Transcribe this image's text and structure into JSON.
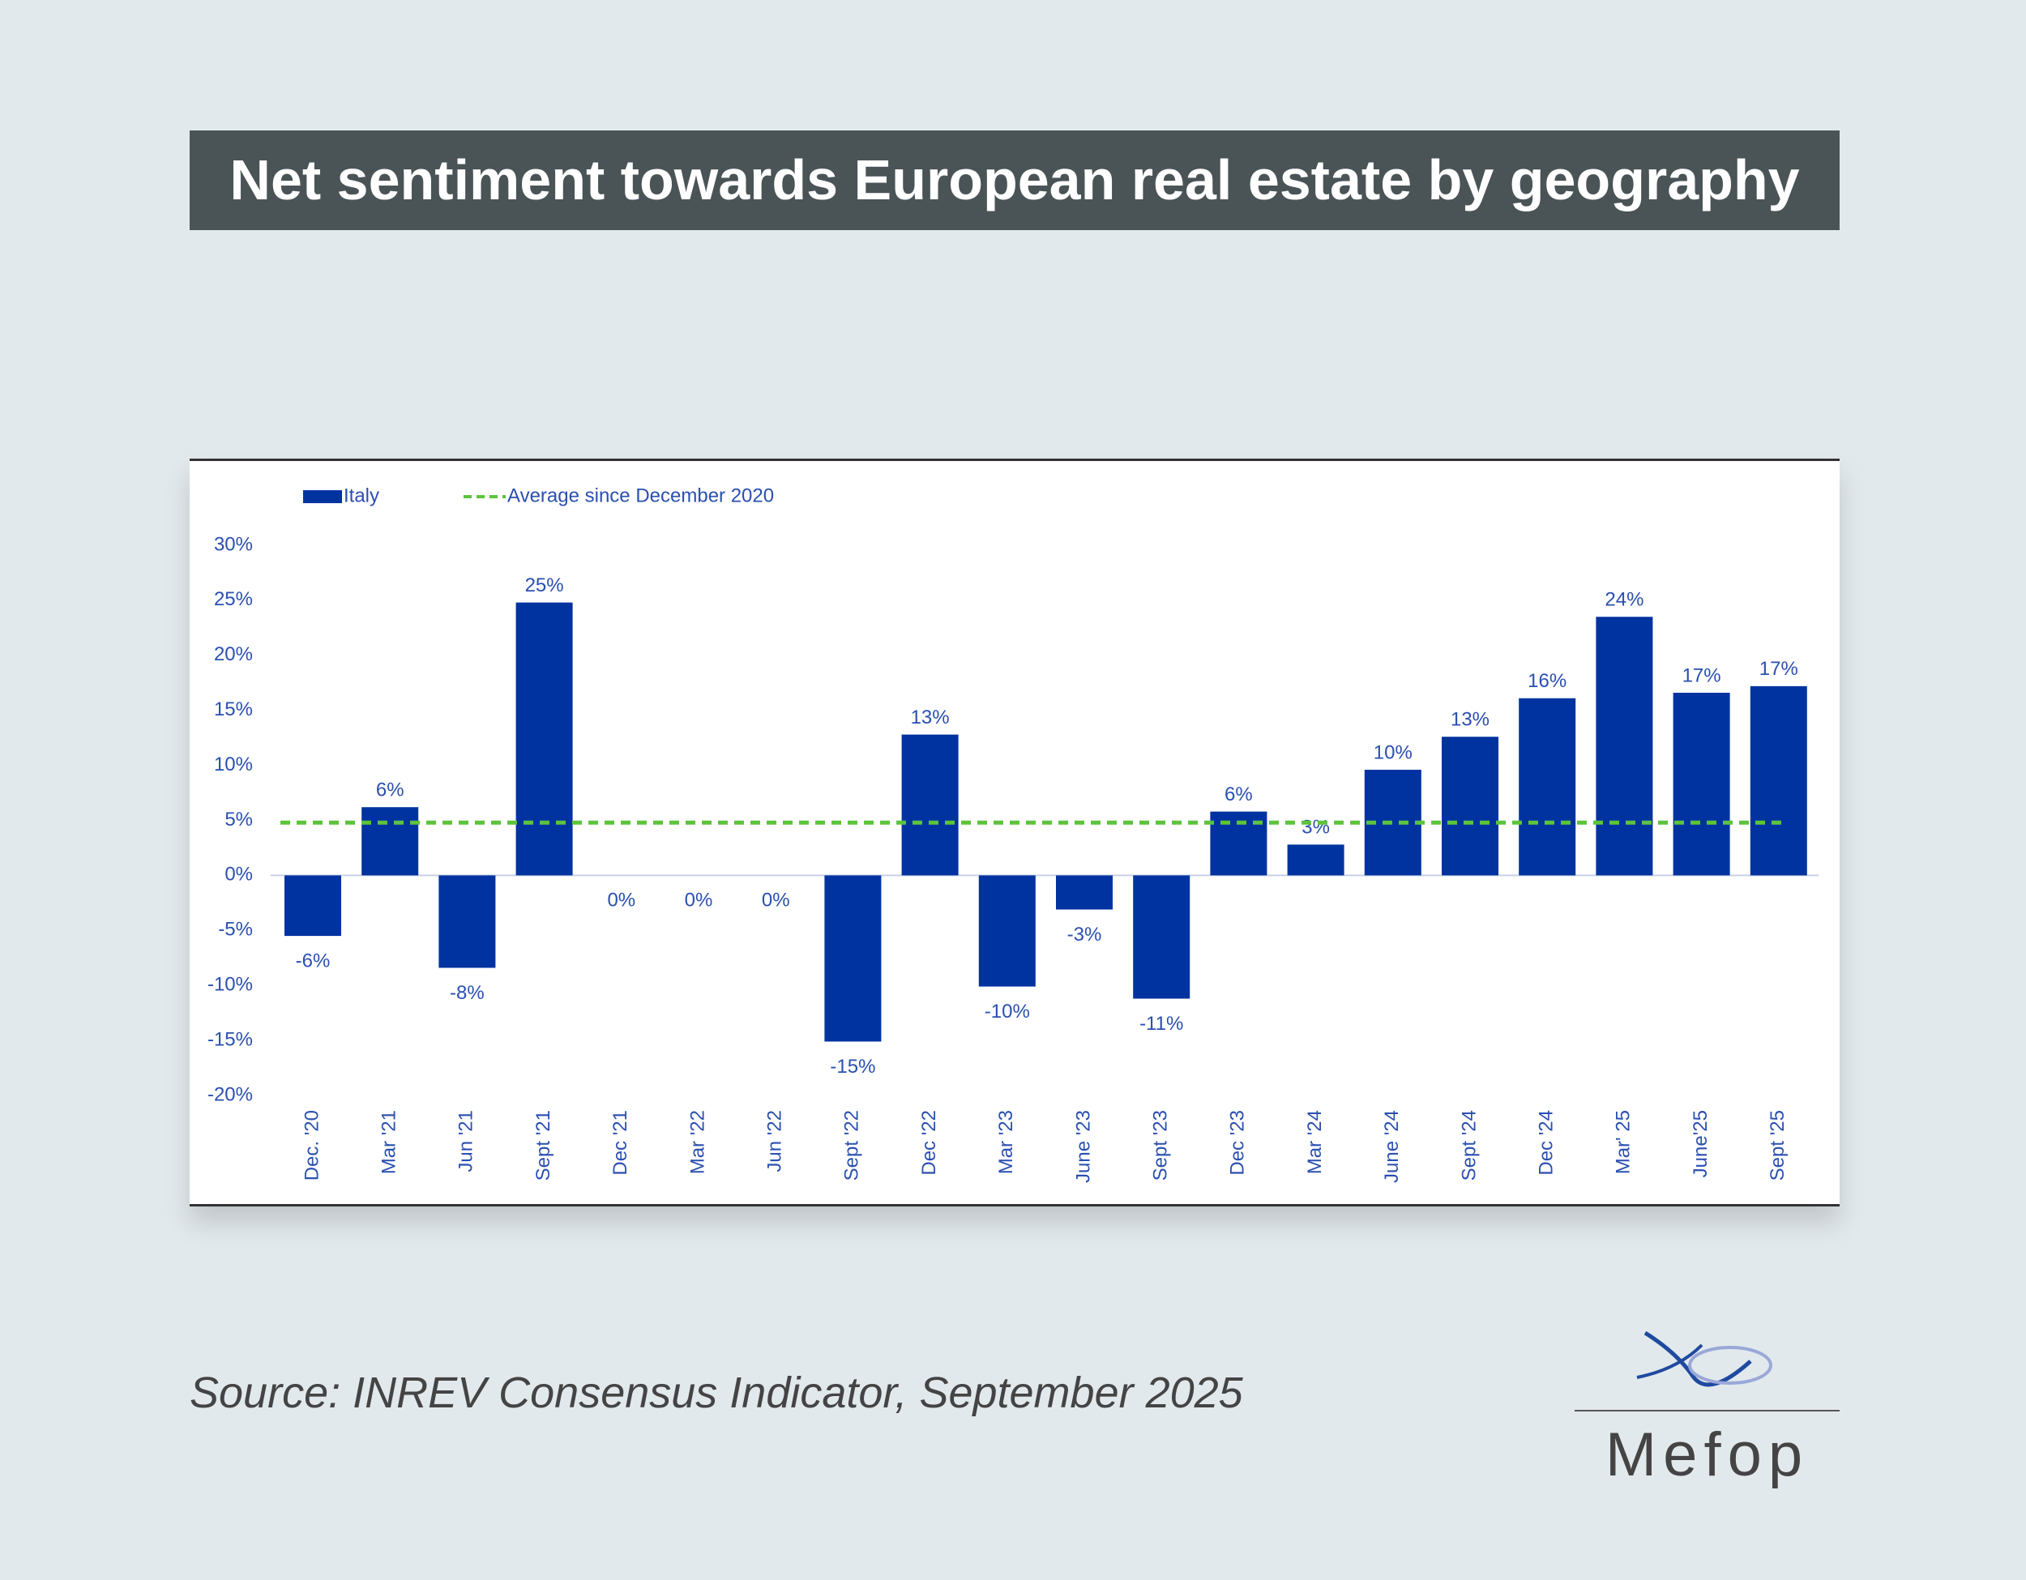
{
  "header": {
    "title": "Net sentiment towards European real estate by geography"
  },
  "chart_data": {
    "type": "bar",
    "categories": [
      "Dec. '20",
      "Mar '21",
      "Jun '21",
      "Sept '21",
      "Dec '21",
      "Mar '22",
      "Jun '22",
      "Sept '22",
      "Dec '22",
      "Mar '23",
      "June '23",
      "Sept '23",
      "Dec '23",
      "Mar '24",
      "June '24",
      "Sept '24",
      "Dec '24",
      "Mar' 25",
      "June'25",
      "Sept '25"
    ],
    "series": [
      {
        "name": "Italy",
        "color": "#0033a0",
        "values": [
          -5.5,
          6.2,
          -8.4,
          24.8,
          0,
          0,
          0,
          -15.1,
          12.8,
          -10.1,
          -3.1,
          -11.2,
          5.8,
          2.8,
          9.6,
          12.6,
          16.1,
          23.5,
          16.6,
          17.2
        ],
        "value_labels": [
          "-6%",
          "6%",
          "-8%",
          "25%",
          "0%",
          "0%",
          "0%",
          "-15%",
          "13%",
          "-10%",
          "-3%",
          "-11%",
          "6%",
          "3%",
          "10%",
          "13%",
          "16%",
          "24%",
          "17%",
          "17%"
        ]
      }
    ],
    "average": {
      "name": "Average since December 2020",
      "color": "#5cc43c",
      "value": 4.8
    },
    "ylim": [
      -20,
      30
    ],
    "yticks": [
      {
        "value": -20,
        "label": "-20%"
      },
      {
        "value": -15,
        "label": "-15%"
      },
      {
        "value": -10,
        "label": "-10%"
      },
      {
        "value": -5,
        "label": "-5%"
      },
      {
        "value": 0,
        "label": "0%"
      },
      {
        "value": 5,
        "label": "5%"
      },
      {
        "value": 10,
        "label": "10%"
      },
      {
        "value": 15,
        "label": "15%"
      },
      {
        "value": 20,
        "label": "20%"
      },
      {
        "value": 25,
        "label": "25%"
      },
      {
        "value": 30,
        "label": "30%"
      }
    ],
    "grid": false
  },
  "footer": {
    "source": "Source: INREV Consensus Indicator, September 2025",
    "logo": "Mefop"
  }
}
